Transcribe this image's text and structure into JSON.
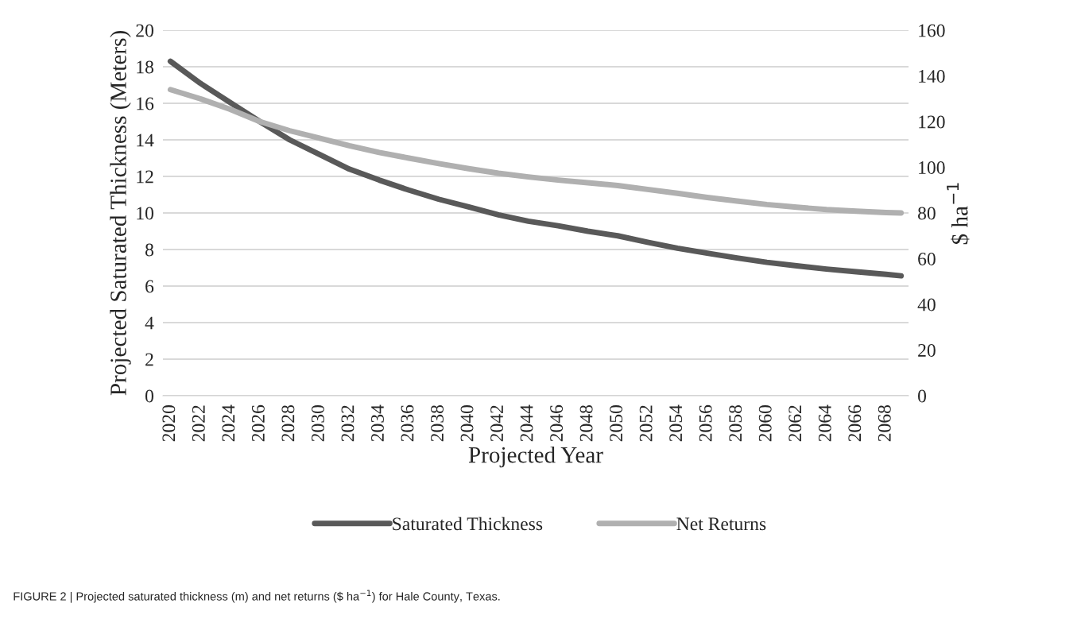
{
  "chart_data": {
    "type": "line",
    "xlabel": "Projected Year",
    "ylabel": "Projected Saturated Thickness (Meters)",
    "y2label": "$ ha$^{−1}$",
    "x": [
      2020,
      2022,
      2024,
      2026,
      2028,
      2030,
      2032,
      2034,
      2036,
      2038,
      2040,
      2042,
      2044,
      2046,
      2048,
      2050,
      2052,
      2054,
      2056,
      2058,
      2060,
      2062,
      2064,
      2066,
      2068,
      2069
    ],
    "series": [
      {
        "name": "Saturated Thickness",
        "color": "#595959",
        "values": [
          18.3,
          17.1,
          16.05,
          15.0,
          14.0,
          13.2,
          12.4,
          11.8,
          11.25,
          10.75,
          10.33,
          9.9,
          9.55,
          9.3,
          9.0,
          8.75,
          8.4,
          8.07,
          7.8,
          7.54,
          7.3,
          7.11,
          6.93,
          6.78,
          6.64,
          6.56
        ]
      },
      {
        "name": "Net Returns",
        "color": "#b0b0b0",
        "axis": "y2",
        "values": [
          134,
          130,
          125.4,
          120,
          116,
          112.7,
          109.4,
          106.5,
          104,
          101.6,
          99.4,
          97.4,
          95.8,
          94.4,
          93.2,
          92.0,
          90.3,
          88.6,
          86.8,
          85.2,
          83.7,
          82.5,
          81.5,
          80.8,
          80.2,
          80.0
        ]
      }
    ],
    "xlim": [
      2019.5,
      2069.5
    ],
    "xticks": [
      2020,
      2022,
      2024,
      2026,
      2028,
      2030,
      2032,
      2034,
      2036,
      2038,
      2040,
      2042,
      2044,
      2046,
      2048,
      2050,
      2052,
      2054,
      2056,
      2058,
      2060,
      2062,
      2064,
      2066,
      2068
    ],
    "ylim": [
      0,
      20
    ],
    "yticks": [
      0,
      2,
      4,
      6,
      8,
      10,
      12,
      14,
      16,
      18,
      20
    ],
    "y2lim": [
      0,
      160
    ],
    "y2ticks": [
      0,
      20,
      40,
      60,
      80,
      100,
      120,
      140,
      160
    ],
    "grid": "y",
    "legend": "bottom",
    "marker": "none",
    "line_style": "solid",
    "annotations": [
      "FIGURE 2 | Projected saturated thickness (m) and net returns ($ ha$^{−1}$) for Hale County, Texas."
    ]
  }
}
